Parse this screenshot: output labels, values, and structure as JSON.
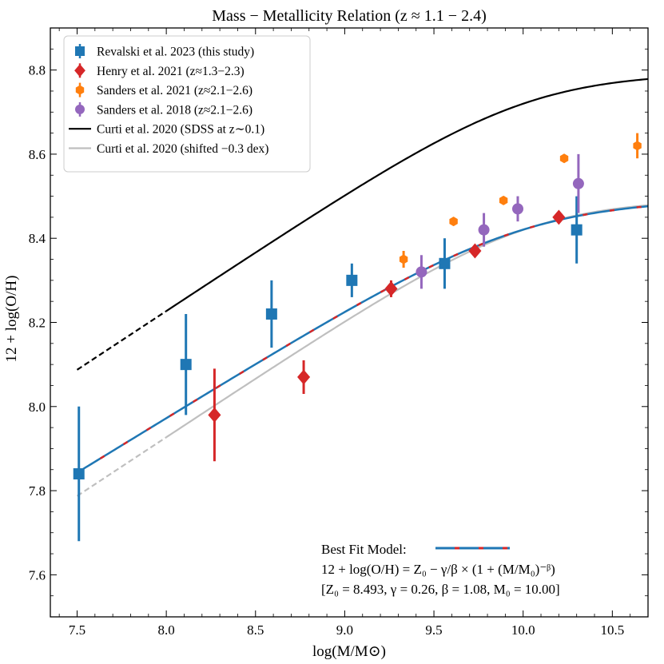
{
  "chart_data": {
    "type": "scatter",
    "title": "Mass − Metallicity Relation (z ≈ 1.1 − 2.4)",
    "xlabel": "log(M/M⊙)",
    "ylabel": "12 + log(O/H)",
    "xlim": [
      7.35,
      10.7
    ],
    "ylim": [
      7.5,
      8.9
    ],
    "xticks": [
      7.5,
      8.0,
      8.5,
      9.0,
      9.5,
      10.0,
      10.5
    ],
    "xtick_labels": [
      "7.5",
      "8.0",
      "8.5",
      "9.0",
      "9.5",
      "10.0",
      "10.5"
    ],
    "yticks": [
      7.6,
      7.8,
      8.0,
      8.2,
      8.4,
      8.6,
      8.8
    ],
    "ytick_labels": [
      "7.6",
      "7.8",
      "8.0",
      "8.2",
      "8.4",
      "8.6",
      "8.8"
    ],
    "series": [
      {
        "name": "Revalski et al. 2023 (this study)",
        "marker": "square",
        "color": "#1f77b4",
        "points": [
          {
            "x": 7.51,
            "y": 7.84,
            "err": 0.16
          },
          {
            "x": 8.11,
            "y": 8.1,
            "err": 0.12
          },
          {
            "x": 8.59,
            "y": 8.22,
            "err": 0.08
          },
          {
            "x": 9.04,
            "y": 8.3,
            "err": 0.04
          },
          {
            "x": 9.56,
            "y": 8.34,
            "err": 0.06
          },
          {
            "x": 10.3,
            "y": 8.42,
            "err": 0.08
          }
        ]
      },
      {
        "name": "Henry et al. 2021 (z≈1.3−2.3)",
        "marker": "diamond",
        "color": "#d62728",
        "points": [
          {
            "x": 8.27,
            "y": 7.98,
            "err": 0.11
          },
          {
            "x": 8.77,
            "y": 8.07,
            "err": 0.04
          },
          {
            "x": 9.26,
            "y": 8.28,
            "err": 0.02
          },
          {
            "x": 9.73,
            "y": 8.37,
            "err": 0.01
          },
          {
            "x": 10.2,
            "y": 8.45,
            "err": 0.01
          }
        ]
      },
      {
        "name": "Sanders et al. 2021 (z≈2.1−2.6)",
        "marker": "hexagon",
        "color": "#ff7f0e",
        "points": [
          {
            "x": 9.33,
            "y": 8.35,
            "err": 0.02
          },
          {
            "x": 9.61,
            "y": 8.44,
            "err": 0.01
          },
          {
            "x": 9.89,
            "y": 8.49,
            "err": 0.01
          },
          {
            "x": 10.23,
            "y": 8.59,
            "err": 0.01
          },
          {
            "x": 10.64,
            "y": 8.62,
            "err": 0.03
          }
        ]
      },
      {
        "name": "Sanders et al. 2018 (z≈2.1−2.6)",
        "marker": "circle",
        "color": "#9467bd",
        "points": [
          {
            "x": 9.43,
            "y": 8.32,
            "err": 0.04
          },
          {
            "x": 9.78,
            "y": 8.42,
            "err": 0.04
          },
          {
            "x": 9.97,
            "y": 8.47,
            "err": 0.03
          },
          {
            "x": 10.31,
            "y": 8.53,
            "err": 0.07
          }
        ]
      }
    ],
    "lines": [
      {
        "name": "Curti et al. 2020 (SDSS at z∼0.1)",
        "color": "#000000",
        "model": {
          "Z0": 8.793,
          "gamma": 0.28,
          "beta": 1.2,
          "M0": 10.02
        },
        "x_range": [
          7.5,
          10.7
        ],
        "dashed_below": 8.0
      },
      {
        "name": "Curti et al. 2020 (shifted −0.3 dex)",
        "color": "#bfbfbf",
        "model": {
          "Z0": 8.493,
          "gamma": 0.28,
          "beta": 1.2,
          "M0": 10.02
        },
        "x_range": [
          7.5,
          10.7
        ],
        "dashed_below": 8.0
      }
    ],
    "best_fit": {
      "name": "Best Fit Model:",
      "colors": [
        "#1f77b4",
        "#d62728"
      ],
      "model": {
        "Z0": 8.493,
        "gamma": 0.26,
        "beta": 1.08,
        "M0": 10.0
      },
      "x_range": [
        7.5,
        10.7
      ]
    },
    "annotation": {
      "label": "Best Fit Model:",
      "equation": "12 + log(O/H) = Z₀ − γ/β × (1 + (M/M₀)⁻ᵝ)",
      "params": "[Z₀ = 8.493, γ = 0.26, β = 1.08, M₀ = 10.00]"
    },
    "legend_position": "top-left"
  }
}
